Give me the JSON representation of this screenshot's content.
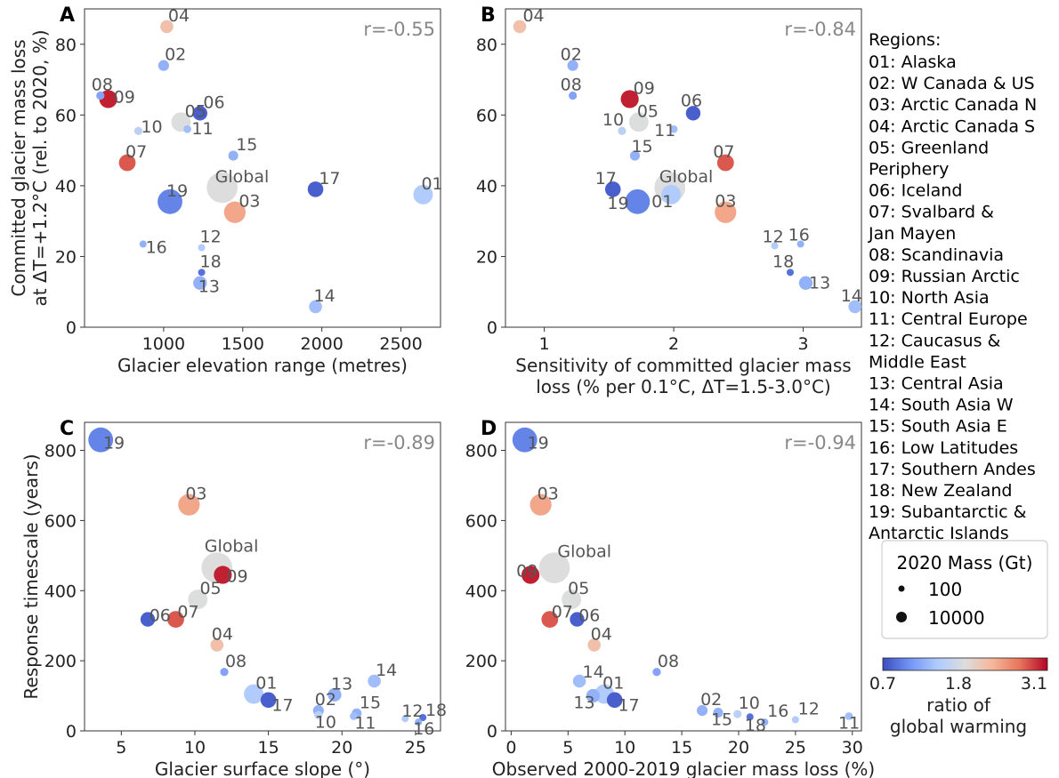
{
  "colorscale": {
    "colors": [
      "#3b4cc0",
      "#7396f5",
      "#b0cbfc",
      "#dcdddd",
      "#f6b69a",
      "#e7745b",
      "#b40426"
    ],
    "ticks": [
      "0.7",
      "1.8",
      "3.1"
    ],
    "min": 0.7,
    "max": 3.1,
    "label_line1": "ratio of",
    "label_line2": "global warming"
  },
  "size_legend": {
    "title": "2020 Mass (Gt)",
    "entries": [
      {
        "label": "100",
        "mass": 100
      },
      {
        "label": "10000",
        "mass": 10000
      }
    ]
  },
  "regions": {
    "title": "Regions:",
    "lines": [
      "01: Alaska",
      "02: W Canada & US",
      "03: Arctic Canada N",
      "04: Arctic Canada S",
      "05: Greenland",
      "      Periphery",
      "06: Iceland",
      "07: Svalbard &",
      "      Jan Mayen",
      "08: Scandinavia",
      "09: Russian Arctic",
      "10: North Asia",
      "11: Central Europe",
      "12: Caucasus &",
      "      Middle East",
      "13: Central Asia",
      "14: South Asia W",
      "15: South Asia E",
      "16: Low Latitudes",
      "17: Southern Andes",
      "18: New Zealand",
      "19: Subantarctic &",
      "      Antarctic Islands"
    ]
  },
  "chart_data": [
    {
      "panel": "A",
      "type": "scatter",
      "xlabel": "Glacier elevation range (metres)",
      "ylabel": [
        "Committed glacier mass loss",
        "at ΔT=+1.2°C (rel. to 2020, %)"
      ],
      "xlim": [
        500,
        2750
      ],
      "ylim": [
        0,
        90
      ],
      "xticks": [
        1000,
        1500,
        2000,
        2500
      ],
      "yticks": [
        0,
        20,
        40,
        60,
        80
      ],
      "r": "r=-0.55",
      "points": [
        {
          "id": "04",
          "x": 1020,
          "y": 85,
          "ratio": 2.2,
          "mass": 2000
        },
        {
          "id": "02",
          "x": 1000,
          "y": 74,
          "ratio": 1.3,
          "mass": 800
        },
        {
          "id": "08",
          "x": 600,
          "y": 65.5,
          "ratio": 1.2,
          "mass": 200
        },
        {
          "id": "09",
          "x": 650,
          "y": 64.5,
          "ratio": 3.0,
          "mass": 10000
        },
        {
          "id": "10",
          "x": 840,
          "y": 55.5,
          "ratio": 1.6,
          "mass": 200
        },
        {
          "id": "05",
          "x": 1110,
          "y": 58,
          "ratio": 1.9,
          "mass": 15000
        },
        {
          "id": "06",
          "x": 1230,
          "y": 60.5,
          "ratio": 0.8,
          "mass": 3500
        },
        {
          "id": "11",
          "x": 1150,
          "y": 56,
          "ratio": 1.4,
          "mass": 150
        },
        {
          "id": "07",
          "x": 770,
          "y": 46.5,
          "ratio": 2.8,
          "mass": 7000
        },
        {
          "id": "15",
          "x": 1440,
          "y": 48.5,
          "ratio": 1.3,
          "mass": 500
        },
        {
          "id": "Global",
          "x": 1370,
          "y": 39.5,
          "ratio": 1.8,
          "mass": 150000
        },
        {
          "id": "19",
          "x": 1040,
          "y": 35.5,
          "ratio": 1.0,
          "mass": 50000
        },
        {
          "id": "03",
          "x": 1450,
          "y": 32.5,
          "ratio": 2.4,
          "mass": 25000
        },
        {
          "id": "17",
          "x": 1960,
          "y": 39,
          "ratio": 0.8,
          "mass": 5000
        },
        {
          "id": "01",
          "x": 2640,
          "y": 37.5,
          "ratio": 1.5,
          "mass": 15000
        },
        {
          "id": "16",
          "x": 870,
          "y": 23.5,
          "ratio": 1.3,
          "mass": 100
        },
        {
          "id": "12",
          "x": 1240,
          "y": 22.5,
          "ratio": 1.5,
          "mass": 100
        },
        {
          "id": "18",
          "x": 1240,
          "y": 15.5,
          "ratio": 0.9,
          "mass": 100
        },
        {
          "id": "13",
          "x": 1230,
          "y": 12.5,
          "ratio": 1.3,
          "mass": 2500
        },
        {
          "id": "14",
          "x": 1960,
          "y": 5.8,
          "ratio": 1.4,
          "mass": 2000
        }
      ]
    },
    {
      "panel": "B",
      "type": "scatter",
      "xlabel": [
        "Sensitivity of committed glacier mass",
        "loss (% per 0.1°C, ΔT=1.5-3.0°C)"
      ],
      "xlim": [
        0.7,
        3.45
      ],
      "ylim": [
        0,
        90
      ],
      "xticks": [
        1,
        2,
        3
      ],
      "yticks": [
        0,
        20,
        40,
        60,
        80
      ],
      "r": "r=-0.84",
      "points": [
        {
          "id": "04",
          "x": 0.81,
          "y": 85,
          "ratio": 2.2,
          "mass": 2000
        },
        {
          "id": "02",
          "x": 1.22,
          "y": 74,
          "ratio": 1.3,
          "mass": 800
        },
        {
          "id": "08",
          "x": 1.22,
          "y": 65.5,
          "ratio": 1.2,
          "mass": 200
        },
        {
          "id": "09",
          "x": 1.66,
          "y": 64.5,
          "ratio": 3.0,
          "mass": 10000
        },
        {
          "id": "05",
          "x": 1.73,
          "y": 58,
          "ratio": 1.9,
          "mass": 15000
        },
        {
          "id": "06",
          "x": 2.15,
          "y": 60.5,
          "ratio": 0.8,
          "mass": 3500
        },
        {
          "id": "11",
          "x": 2.0,
          "y": 56,
          "ratio": 1.4,
          "mass": 150
        },
        {
          "id": "10",
          "x": 1.6,
          "y": 55.5,
          "ratio": 1.6,
          "mass": 200
        },
        {
          "id": "15",
          "x": 1.7,
          "y": 48.5,
          "ratio": 1.3,
          "mass": 500
        },
        {
          "id": "07",
          "x": 2.4,
          "y": 46.5,
          "ratio": 2.8,
          "mass": 7000
        },
        {
          "id": "17",
          "x": 1.53,
          "y": 39,
          "ratio": 0.8,
          "mass": 5000
        },
        {
          "id": "19",
          "x": 1.72,
          "y": 35.5,
          "ratio": 1.0,
          "mass": 50000
        },
        {
          "id": "Global",
          "x": 1.97,
          "y": 39.5,
          "ratio": 1.8,
          "mass": 150000
        },
        {
          "id": "01",
          "x": 1.98,
          "y": 37.5,
          "ratio": 1.5,
          "mass": 15000
        },
        {
          "id": "03",
          "x": 2.4,
          "y": 32.5,
          "ratio": 2.4,
          "mass": 25000
        },
        {
          "id": "12",
          "x": 2.78,
          "y": 23,
          "ratio": 1.5,
          "mass": 100
        },
        {
          "id": "16",
          "x": 2.98,
          "y": 23.5,
          "ratio": 1.3,
          "mass": 100
        },
        {
          "id": "18",
          "x": 2.9,
          "y": 15.5,
          "ratio": 0.9,
          "mass": 100
        },
        {
          "id": "13",
          "x": 3.02,
          "y": 12.5,
          "ratio": 1.3,
          "mass": 2500
        },
        {
          "id": "14",
          "x": 3.4,
          "y": 5.8,
          "ratio": 1.4,
          "mass": 2000
        }
      ]
    },
    {
      "panel": "C",
      "type": "scatter",
      "xlabel": "Glacier surface slope (°)",
      "ylabel": [
        "Response timescale (years)"
      ],
      "xlim": [
        2.5,
        26.7
      ],
      "ylim": [
        0,
        880
      ],
      "xticks": [
        5,
        10,
        15,
        20,
        25
      ],
      "yticks": [
        0,
        200,
        400,
        600,
        800
      ],
      "r": "r=-0.89",
      "points": [
        {
          "id": "19",
          "x": 3.6,
          "y": 830,
          "ratio": 1.0,
          "mass": 50000
        },
        {
          "id": "03",
          "x": 9.6,
          "y": 645,
          "ratio": 2.4,
          "mass": 25000
        },
        {
          "id": "Global",
          "x": 11.5,
          "y": 465,
          "ratio": 1.8,
          "mass": 150000
        },
        {
          "id": "09",
          "x": 11.9,
          "y": 445,
          "ratio": 3.0,
          "mass": 10000
        },
        {
          "id": "05",
          "x": 10.2,
          "y": 375,
          "ratio": 1.9,
          "mass": 15000
        },
        {
          "id": "06",
          "x": 6.8,
          "y": 318,
          "ratio": 0.8,
          "mass": 3500
        },
        {
          "id": "07",
          "x": 8.7,
          "y": 318,
          "ratio": 2.8,
          "mass": 7000
        },
        {
          "id": "04",
          "x": 11.5,
          "y": 245,
          "ratio": 2.2,
          "mass": 2000
        },
        {
          "id": "08",
          "x": 12.0,
          "y": 168,
          "ratio": 1.2,
          "mass": 200
        },
        {
          "id": "01",
          "x": 14.0,
          "y": 105,
          "ratio": 1.5,
          "mass": 15000
        },
        {
          "id": "17",
          "x": 15.0,
          "y": 88,
          "ratio": 0.8,
          "mass": 5000
        },
        {
          "id": "14",
          "x": 22.2,
          "y": 142,
          "ratio": 1.4,
          "mass": 2000
        },
        {
          "id": "13",
          "x": 19.5,
          "y": 103,
          "ratio": 1.3,
          "mass": 2500
        },
        {
          "id": "02",
          "x": 18.4,
          "y": 58,
          "ratio": 1.3,
          "mass": 800
        },
        {
          "id": "10",
          "x": 18.4,
          "y": 45,
          "ratio": 1.6,
          "mass": 200
        },
        {
          "id": "15",
          "x": 21.0,
          "y": 50,
          "ratio": 1.3,
          "mass": 500
        },
        {
          "id": "11",
          "x": 20.8,
          "y": 42,
          "ratio": 1.4,
          "mass": 150
        },
        {
          "id": "12",
          "x": 24.3,
          "y": 35,
          "ratio": 1.5,
          "mass": 100
        },
        {
          "id": "18",
          "x": 25.5,
          "y": 38,
          "ratio": 0.9,
          "mass": 100
        },
        {
          "id": "16",
          "x": 25.2,
          "y": 25,
          "ratio": 1.3,
          "mass": 100
        }
      ]
    },
    {
      "panel": "D",
      "type": "scatter",
      "xlabel": "Observed 2000-2019 glacier mass loss (%)",
      "xlim": [
        -0.5,
        30.8
      ],
      "ylim": [
        0,
        880
      ],
      "xticks": [
        0,
        5,
        10,
        15,
        20,
        25,
        30
      ],
      "yticks": [
        0,
        200,
        400,
        600,
        800
      ],
      "r": "r=-0.94",
      "points": [
        {
          "id": "19",
          "x": 1.2,
          "y": 830,
          "ratio": 1.0,
          "mass": 50000
        },
        {
          "id": "03",
          "x": 2.6,
          "y": 645,
          "ratio": 2.4,
          "mass": 25000
        },
        {
          "id": "Global",
          "x": 3.8,
          "y": 465,
          "ratio": 1.8,
          "mass": 150000
        },
        {
          "id": "09",
          "x": 1.7,
          "y": 445,
          "ratio": 3.0,
          "mass": 10000
        },
        {
          "id": "05",
          "x": 5.3,
          "y": 375,
          "ratio": 1.9,
          "mass": 15000
        },
        {
          "id": "07",
          "x": 3.4,
          "y": 318,
          "ratio": 2.8,
          "mass": 7000
        },
        {
          "id": "06",
          "x": 5.8,
          "y": 318,
          "ratio": 0.8,
          "mass": 3500
        },
        {
          "id": "04",
          "x": 7.3,
          "y": 245,
          "ratio": 2.2,
          "mass": 2000
        },
        {
          "id": "08",
          "x": 12.8,
          "y": 168,
          "ratio": 1.2,
          "mass": 200
        },
        {
          "id": "14",
          "x": 6.0,
          "y": 142,
          "ratio": 1.4,
          "mass": 2000
        },
        {
          "id": "01",
          "x": 8.2,
          "y": 105,
          "ratio": 1.5,
          "mass": 15000
        },
        {
          "id": "13",
          "x": 7.2,
          "y": 100,
          "ratio": 1.3,
          "mass": 2500
        },
        {
          "id": "17",
          "x": 9.1,
          "y": 88,
          "ratio": 0.8,
          "mass": 5000
        },
        {
          "id": "02",
          "x": 16.8,
          "y": 58,
          "ratio": 1.3,
          "mass": 800
        },
        {
          "id": "15",
          "x": 18.2,
          "y": 52,
          "ratio": 1.3,
          "mass": 500
        },
        {
          "id": "10",
          "x": 19.9,
          "y": 48,
          "ratio": 1.6,
          "mass": 200
        },
        {
          "id": "18",
          "x": 21.0,
          "y": 40,
          "ratio": 0.9,
          "mass": 100
        },
        {
          "id": "16",
          "x": 22.3,
          "y": 25,
          "ratio": 1.3,
          "mass": 100
        },
        {
          "id": "12",
          "x": 25.0,
          "y": 32,
          "ratio": 1.5,
          "mass": 100
        },
        {
          "id": "11",
          "x": 29.7,
          "y": 42,
          "ratio": 1.4,
          "mass": 150
        }
      ]
    }
  ]
}
